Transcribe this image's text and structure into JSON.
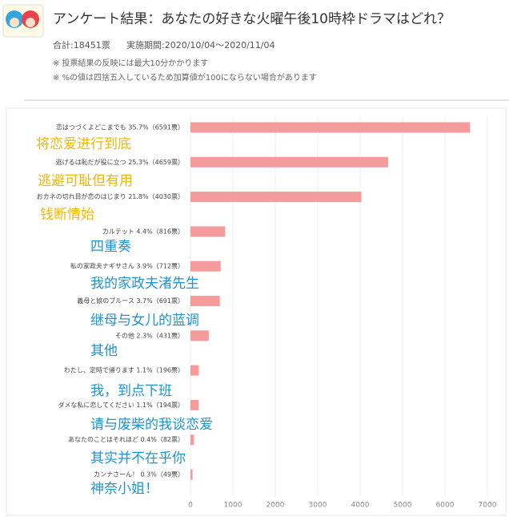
{
  "header": {
    "title": "アンケート結果：あなたの好きな火曜午後10時枠ドラマはどれ？",
    "total": "合計:18451票",
    "period": "実施期間:2020/10/04～2020/11/04",
    "notes": [
      "※ 投票結果の反映には最大10分かかります",
      "※ %の値は四捨五入しているため加算値が100にならない場合があります"
    ]
  },
  "chart_data": {
    "type": "hbar",
    "categories": [
      "恋はつづくよどこまでも 35.7%（6591票）",
      "逃げるは恥だが役に立つ 25.3%（4659票）",
      "おカネの切れ目が恋のはじまり 21.8%（4030票）",
      "カルテット 4.4%（816票）",
      "私の家政夫ナギサさん 3.9%（712票）",
      "義母と娘のブルース 3.7%（691票）",
      "その他 2.3%（431票）",
      "わたし、定時で帰ります 1.1%（196票）",
      "ダメな私に恋してください 1.1%（194票）",
      "あなたのことはそれほど 0.4%（82票）",
      "カンナさーん！ 0.3%（49票）"
    ],
    "values": [
      6591,
      4659,
      4030,
      816,
      712,
      691,
      431,
      196,
      194,
      82,
      49
    ],
    "color": "#f59b9c",
    "xlim": [
      0,
      7000
    ],
    "xticks": [
      0,
      1000,
      2000,
      3000,
      4000,
      5000,
      6000,
      7000
    ],
    "grid": true,
    "annotations": [
      {
        "text": "将恋爱进行到底",
        "color": "#f2b705"
      },
      {
        "text": "逃避可耻但有用",
        "color": "#f2b705"
      },
      {
        "text": "钱断情始",
        "color": "#f2b705"
      },
      {
        "text": "四重奏",
        "color": "#1f93d4"
      },
      {
        "text": "我的家政夫渚先生",
        "color": "#1f93d4"
      },
      {
        "text": "继母与女儿的蓝调",
        "color": "#1f93d4"
      },
      {
        "text": "其他",
        "color": "#1f93d4"
      },
      {
        "text": "我，到点下班",
        "color": "#1f93d4"
      },
      {
        "text": "请与废柴的我谈恋爱",
        "color": "#1f93d4"
      },
      {
        "text": "其实并不在乎你",
        "color": "#1f93d4"
      },
      {
        "text": "神奈小姐！",
        "color": "#1f93d4"
      }
    ]
  }
}
